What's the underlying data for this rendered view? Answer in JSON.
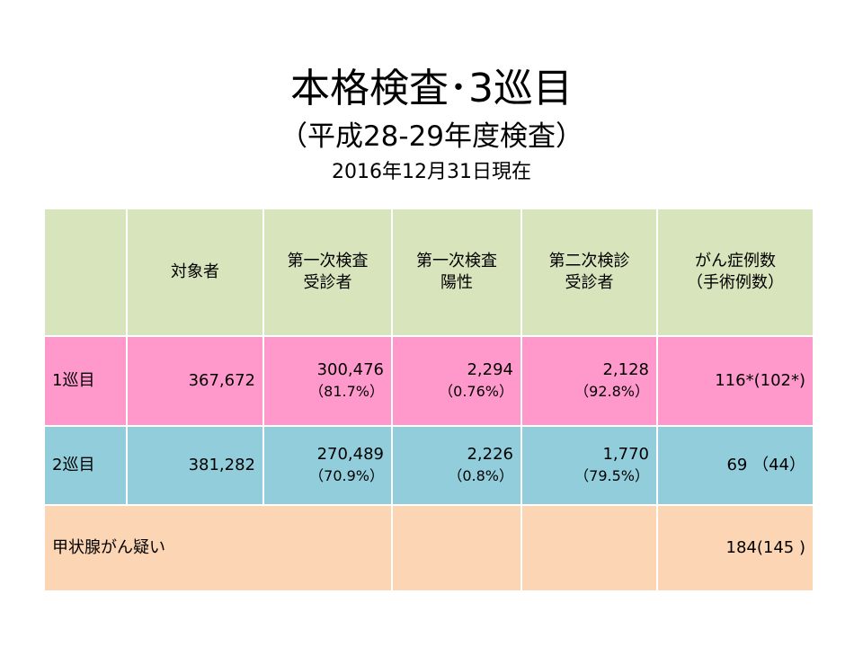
{
  "title": "本格検査･3巡目",
  "subtitle": "（平成28-29年度検査）",
  "as_of": "2016年12月31日現在",
  "table": {
    "headers": [
      [
        "",
        ""
      ],
      [
        "対象者",
        ""
      ],
      [
        "第一次検査",
        "受診者"
      ],
      [
        "第一次検査",
        "陽性"
      ],
      [
        "第二次検診",
        "受診者"
      ],
      [
        "がん症例数",
        "（手術例数）"
      ]
    ],
    "rows": [
      {
        "label": "1巡目",
        "target": "367,672",
        "first_exam": {
          "value": "300,476",
          "pct": "（81.7%）"
        },
        "first_positive": {
          "value": "2,294",
          "pct": "（0.76%）"
        },
        "second_exam": {
          "value": "2,128",
          "pct": "（92.8%）"
        },
        "cancer": "116*(102*)"
      },
      {
        "label": "2巡目",
        "target": "381,282",
        "first_exam": {
          "value": "270,489",
          "pct": "（70.9%）"
        },
        "first_positive": {
          "value": "2,226",
          "pct": "（0.8%）"
        },
        "second_exam": {
          "value": "1,770",
          "pct": "（79.5%）"
        },
        "cancer": "69 （44）"
      }
    ],
    "total": {
      "label": "甲状腺がん疑い",
      "cancer": "184(145 )"
    }
  },
  "colors": {
    "header": "#d8e4bc",
    "row1": "#ff99cc",
    "row2": "#92cddc",
    "total": "#fcd5b4"
  }
}
